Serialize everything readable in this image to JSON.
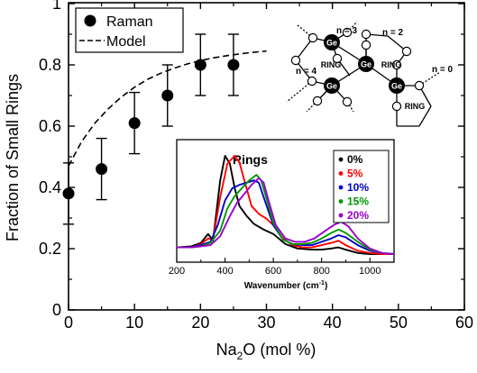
{
  "chart_data": [
    {
      "type": "scatter",
      "xlabel_base": "Na",
      "xlabel_sub": "2",
      "xlabel_rest": "O (mol %)",
      "ylabel": "Fraction of Small Rings",
      "xlim": [
        0,
        60
      ],
      "ylim": [
        0,
        1
      ],
      "xticks": [
        "0",
        "10",
        "20",
        "30",
        "40",
        "50",
        "60"
      ],
      "yticks": [
        "0",
        "0.2",
        "0.4",
        "0.6",
        "0.8",
        "1"
      ],
      "legend_placement": "top-left",
      "series": [
        {
          "name": "Raman",
          "marker": "filled-circle",
          "color": "#000000",
          "points": [
            {
              "x": 0,
              "y": 0.38,
              "err": 0.1
            },
            {
              "x": 5,
              "y": 0.46,
              "err": 0.1
            },
            {
              "x": 10,
              "y": 0.61,
              "err": 0.1
            },
            {
              "x": 15,
              "y": 0.7,
              "err": 0.1
            },
            {
              "x": 20,
              "y": 0.8,
              "err": 0.1
            },
            {
              "x": 25,
              "y": 0.8,
              "err": 0.1
            }
          ]
        },
        {
          "name": "Model",
          "style": "dashed",
          "color": "#000000",
          "x": [
            0,
            2,
            4,
            6,
            8,
            10,
            12,
            14,
            16,
            18,
            20,
            22,
            24,
            26,
            28,
            30
          ],
          "y": [
            0.47,
            0.55,
            0.61,
            0.656,
            0.695,
            0.727,
            0.753,
            0.773,
            0.789,
            0.803,
            0.814,
            0.823,
            0.83,
            0.836,
            0.841,
            0.845
          ]
        }
      ]
    },
    {
      "type": "line",
      "title": "Rings",
      "xlabel_base": "Wavenumber (cm",
      "xlabel_sup": "-1",
      "xlabel_rest": ")",
      "xlim": [
        200,
        1100
      ],
      "ylim": [
        0,
        1
      ],
      "xticks": [
        "200",
        "400",
        "600",
        "800",
        "1000"
      ],
      "legend_placement": "top-right",
      "series": [
        {
          "name": "0%",
          "color": "#000000",
          "x": [
            200,
            260,
            300,
            330,
            350,
            380,
            400,
            420,
            440,
            460,
            490,
            520,
            560,
            600,
            650,
            700,
            760,
            800,
            840,
            870,
            900,
            950,
            1000,
            1050,
            1100
          ],
          "y": [
            0.1,
            0.11,
            0.14,
            0.22,
            0.16,
            0.7,
            0.92,
            0.85,
            0.63,
            0.47,
            0.38,
            0.31,
            0.26,
            0.22,
            0.13,
            0.09,
            0.08,
            0.08,
            0.09,
            0.1,
            0.08,
            0.05,
            0.04,
            0.04,
            0.04
          ]
        },
        {
          "name": "5%",
          "color": "#ff0000",
          "x": [
            200,
            260,
            300,
            330,
            350,
            380,
            410,
            440,
            460,
            480,
            510,
            540,
            570,
            600,
            640,
            680,
            720,
            760,
            800,
            840,
            870,
            900,
            950,
            1000,
            1050,
            1100
          ],
          "y": [
            0.1,
            0.1,
            0.13,
            0.18,
            0.17,
            0.55,
            0.85,
            0.92,
            0.86,
            0.7,
            0.47,
            0.4,
            0.36,
            0.3,
            0.18,
            0.12,
            0.1,
            0.1,
            0.12,
            0.14,
            0.16,
            0.12,
            0.07,
            0.05,
            0.04,
            0.04
          ]
        },
        {
          "name": "10%",
          "color": "#0000cc",
          "x": [
            200,
            260,
            300,
            340,
            370,
            400,
            430,
            460,
            490,
            520,
            540,
            560,
            600,
            640,
            680,
            720,
            760,
            800,
            840,
            870,
            900,
            950,
            1000,
            1050,
            1100
          ],
          "y": [
            0.1,
            0.1,
            0.12,
            0.15,
            0.3,
            0.52,
            0.63,
            0.66,
            0.68,
            0.7,
            0.68,
            0.55,
            0.3,
            0.17,
            0.13,
            0.12,
            0.12,
            0.15,
            0.18,
            0.21,
            0.19,
            0.12,
            0.07,
            0.05,
            0.04
          ]
        },
        {
          "name": "15%",
          "color": "#009900",
          "x": [
            200,
            260,
            300,
            340,
            380,
            410,
            440,
            470,
            500,
            530,
            550,
            570,
            600,
            640,
            680,
            720,
            760,
            800,
            840,
            870,
            900,
            950,
            1000,
            1050,
            1100
          ],
          "y": [
            0.1,
            0.1,
            0.11,
            0.14,
            0.25,
            0.45,
            0.56,
            0.63,
            0.7,
            0.75,
            0.7,
            0.55,
            0.32,
            0.17,
            0.13,
            0.13,
            0.14,
            0.18,
            0.23,
            0.26,
            0.23,
            0.15,
            0.08,
            0.05,
            0.04
          ]
        },
        {
          "name": "20%",
          "color": "#9900cc",
          "x": [
            200,
            260,
            300,
            340,
            380,
            420,
            450,
            480,
            510,
            540,
            560,
            580,
            610,
            650,
            690,
            730,
            770,
            810,
            850,
            880,
            910,
            950,
            1000,
            1050,
            1100
          ],
          "y": [
            0.1,
            0.1,
            0.11,
            0.12,
            0.2,
            0.38,
            0.5,
            0.58,
            0.66,
            0.72,
            0.68,
            0.52,
            0.3,
            0.18,
            0.15,
            0.15,
            0.18,
            0.24,
            0.3,
            0.33,
            0.29,
            0.18,
            0.09,
            0.05,
            0.04
          ]
        }
      ]
    }
  ],
  "schematic": {
    "atom_label": "Ge",
    "ring_label": "RING",
    "n_labels": [
      "n = 3",
      "n = 2",
      "n = 4",
      "n = 0"
    ]
  }
}
